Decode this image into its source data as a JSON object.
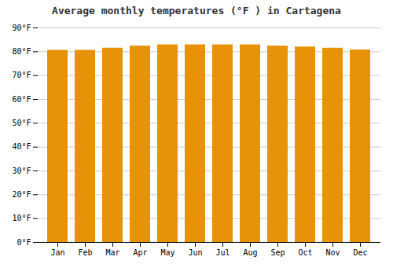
{
  "chart_data": {
    "type": "bar",
    "title": "Average monthly temperatures (°F ) in Cartagena",
    "categories": [
      "Jan",
      "Feb",
      "Mar",
      "Apr",
      "May",
      "Jun",
      "Jul",
      "Aug",
      "Sep",
      "Oct",
      "Nov",
      "Dec"
    ],
    "values": [
      80.6,
      80.6,
      81.5,
      82.4,
      82.9,
      82.9,
      82.9,
      82.9,
      82.4,
      82.0,
      81.5,
      80.8
    ],
    "color": "#E8920A",
    "ylim": [
      0,
      90
    ],
    "yticks": [
      {
        "value": 0,
        "label": "0°F"
      },
      {
        "value": 10,
        "label": "10°F"
      },
      {
        "value": 20,
        "label": "20°F"
      },
      {
        "value": 30,
        "label": "30°F"
      },
      {
        "value": 40,
        "label": "40°F"
      },
      {
        "value": 50,
        "label": "50°F"
      },
      {
        "value": 60,
        "label": "60°F"
      },
      {
        "value": 70,
        "label": "70°F"
      },
      {
        "value": 80,
        "label": "80°F"
      },
      {
        "value": 90,
        "label": "90°F"
      }
    ],
    "grid": true
  }
}
